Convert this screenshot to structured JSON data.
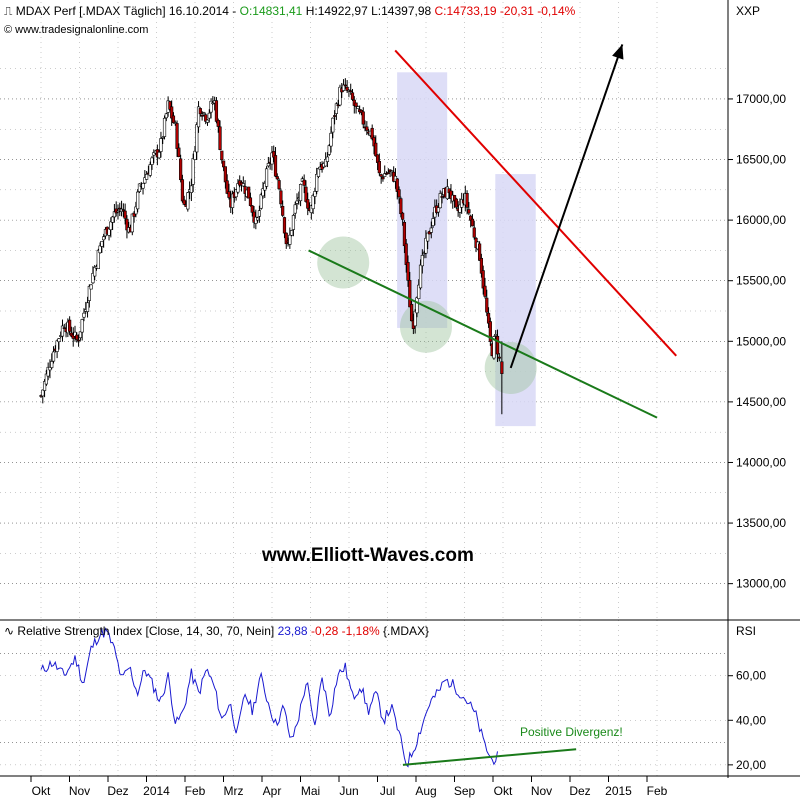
{
  "header": {
    "instrument": "MDAX Perf [.MDAX  Täglich] 16.10.2014 -",
    "open": "O:14831,41",
    "high": "H:14922,97",
    "low": "L:14397,98",
    "close_change": "C:14733,19 -20,31 -0,14%",
    "source": "© www.tradesignalonline.com",
    "panel_code": "XXP"
  },
  "rsi_header": {
    "title": "Relative Strength Index [Close, 14, 30, 70, Nein]",
    "value": "23,88",
    "change": "-0,28 -1,18%",
    "symbol": "{.MDAX}",
    "panel_code": "RSI"
  },
  "watermark": "www.Elliott-Waves.com",
  "annotation": "Positive Divergenz!",
  "colors": {
    "candle_up": "#ffffff",
    "candle_down": "#b00000",
    "resistance": "#e00000",
    "support": "#1a7a1a",
    "rsi_line": "#1a1ad0",
    "highlight": "#d8d8f6",
    "circle": "#9ec49e",
    "arrow": "#000000"
  },
  "chart_data": [
    {
      "type": "candlestick",
      "title": "MDAX Perf [.MDAX  Täglich]",
      "ylim": [
        12700,
        17800
      ],
      "y_ticks": [
        13000,
        13500,
        14000,
        14500,
        15000,
        15500,
        16000,
        16500,
        17000
      ],
      "y_tick_labels": [
        "13000,00",
        "13500,00",
        "14000,00",
        "14500,00",
        "15000,00",
        "15500,00",
        "16000,00",
        "16500,00",
        "17000,00"
      ],
      "x_labels": [
        "Okt",
        "Nov",
        "Dez",
        "2014",
        "Feb",
        "Mrz",
        "Apr",
        "Mai",
        "Jun",
        "Jul",
        "Aug",
        "Sep",
        "Okt",
        "Nov",
        "Dez",
        "2015",
        "Feb"
      ],
      "x_label_months": [
        0,
        1,
        2,
        3,
        4,
        5,
        6,
        7,
        8,
        9,
        10,
        11,
        12,
        13,
        14,
        15,
        16
      ],
      "x_axis_note": "month index: 0 = Okt 2013, 12 = Okt 2014",
      "price_path": [
        [
          0.0,
          14550
        ],
        [
          0.3,
          14900
        ],
        [
          0.6,
          15150
        ],
        [
          0.95,
          15000
        ],
        [
          1.3,
          15500
        ],
        [
          1.6,
          15850
        ],
        [
          1.9,
          16050
        ],
        [
          2.1,
          16100
        ],
        [
          2.3,
          15900
        ],
        [
          2.55,
          16250
        ],
        [
          2.9,
          16500
        ],
        [
          3.1,
          16600
        ],
        [
          3.3,
          16950
        ],
        [
          3.5,
          16750
        ],
        [
          3.7,
          16100
        ],
        [
          3.9,
          16300
        ],
        [
          4.1,
          16950
        ],
        [
          4.3,
          16850
        ],
        [
          4.5,
          17000
        ],
        [
          4.7,
          16500
        ],
        [
          4.9,
          16100
        ],
        [
          5.15,
          16350
        ],
        [
          5.4,
          16200
        ],
        [
          5.6,
          15950
        ],
        [
          5.8,
          16300
        ],
        [
          6.0,
          16550
        ],
        [
          6.2,
          16250
        ],
        [
          6.4,
          15750
        ],
        [
          6.6,
          16100
        ],
        [
          6.8,
          16300
        ],
        [
          7.0,
          16050
        ],
        [
          7.2,
          16450
        ],
        [
          7.4,
          16450
        ],
        [
          7.6,
          16850
        ],
        [
          7.8,
          17100
        ],
        [
          8.0,
          17050
        ],
        [
          8.2,
          16900
        ],
        [
          8.4,
          16800
        ],
        [
          8.6,
          16700
        ],
        [
          8.8,
          16350
        ],
        [
          9.0,
          16400
        ],
        [
          9.2,
          16350
        ],
        [
          9.4,
          15950
        ],
        [
          9.55,
          15400
        ],
        [
          9.65,
          15100
        ],
        [
          9.8,
          15500
        ],
        [
          10.0,
          15800
        ],
        [
          10.2,
          16050
        ],
        [
          10.4,
          16200
        ],
        [
          10.6,
          16250
        ],
        [
          10.8,
          16050
        ],
        [
          11.0,
          16200
        ],
        [
          11.2,
          15950
        ],
        [
          11.4,
          15700
        ],
        [
          11.55,
          15300
        ],
        [
          11.7,
          14900
        ],
        [
          11.8,
          15050
        ],
        [
          11.95,
          14750
        ]
      ],
      "resistance_line": {
        "start": [
          9.2,
          17400
        ],
        "end": [
          16.5,
          14880
        ]
      },
      "support_line": {
        "start": [
          6.95,
          15750
        ],
        "end": [
          16.0,
          14370
        ]
      },
      "support_touches": [
        [
          7.85,
          15650
        ],
        [
          10.0,
          15120
        ],
        [
          12.2,
          14780
        ]
      ],
      "highlighted_ranges": [
        {
          "x": [
            9.25,
            10.55
          ],
          "y": [
            15110,
            17220
          ]
        },
        {
          "x": [
            11.8,
            12.85
          ],
          "y": [
            14300,
            16380
          ]
        }
      ],
      "projection_arrow": {
        "start": [
          12.2,
          14780
        ],
        "end": [
          15.1,
          17450
        ]
      },
      "grid": true,
      "legend": "none"
    },
    {
      "type": "line",
      "title": "Relative Strength Index [Close, 14, 30, 70, Nein]",
      "ylim": [
        15,
        85
      ],
      "y_ticks": [
        20,
        40,
        60
      ],
      "y_tick_labels": [
        "20,00",
        "40,00",
        "60,00"
      ],
      "reference_lines": [
        30,
        70
      ],
      "series": [
        {
          "values": [
            [
              0.0,
              62
            ],
            [
              0.3,
              66
            ],
            [
              0.6,
              60
            ],
            [
              0.9,
              68
            ],
            [
              1.1,
              56
            ],
            [
              1.3,
              72
            ],
            [
              1.5,
              78
            ],
            [
              1.7,
              80
            ],
            [
              1.9,
              72
            ],
            [
              2.1,
              58
            ],
            [
              2.3,
              64
            ],
            [
              2.5,
              52
            ],
            [
              2.7,
              63
            ],
            [
              2.9,
              56
            ],
            [
              3.1,
              48
            ],
            [
              3.3,
              60
            ],
            [
              3.5,
              38
            ],
            [
              3.7,
              44
            ],
            [
              3.9,
              61
            ],
            [
              4.1,
              52
            ],
            [
              4.3,
              63
            ],
            [
              4.5,
              55
            ],
            [
              4.7,
              40
            ],
            [
              4.9,
              48
            ],
            [
              5.1,
              34
            ],
            [
              5.3,
              52
            ],
            [
              5.5,
              44
            ],
            [
              5.7,
              60
            ],
            [
              5.9,
              48
            ],
            [
              6.1,
              38
            ],
            [
              6.3,
              46
            ],
            [
              6.5,
              30
            ],
            [
              6.7,
              42
            ],
            [
              6.9,
              58
            ],
            [
              7.1,
              36
            ],
            [
              7.3,
              60
            ],
            [
              7.5,
              42
            ],
            [
              7.7,
              60
            ],
            [
              7.9,
              64
            ],
            [
              8.1,
              50
            ],
            [
              8.3,
              56
            ],
            [
              8.5,
              44
            ],
            [
              8.7,
              52
            ],
            [
              8.9,
              40
            ],
            [
              9.1,
              46
            ],
            [
              9.3,
              34
            ],
            [
              9.5,
              20
            ],
            [
              9.7,
              28
            ],
            [
              9.9,
              38
            ],
            [
              10.1,
              48
            ],
            [
              10.3,
              52
            ],
            [
              10.5,
              58
            ],
            [
              10.7,
              56
            ],
            [
              10.9,
              52
            ],
            [
              11.1,
              48
            ],
            [
              11.3,
              42
            ],
            [
              11.5,
              30
            ],
            [
              11.7,
              22
            ],
            [
              11.9,
              24
            ]
          ]
        }
      ],
      "divergence_line": {
        "start": [
          9.4,
          20
        ],
        "end": [
          13.9,
          27
        ]
      },
      "grid": true,
      "legend": "none"
    }
  ]
}
